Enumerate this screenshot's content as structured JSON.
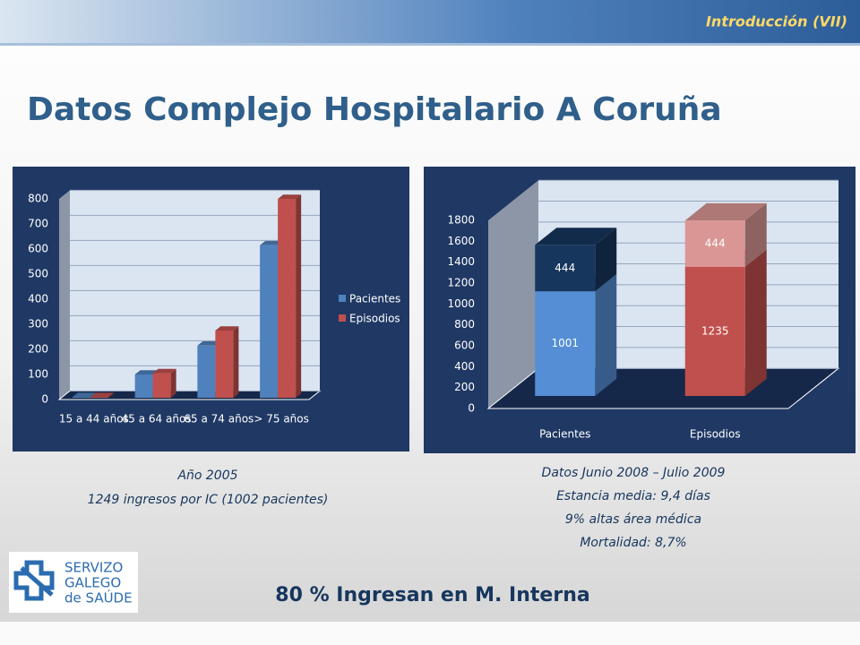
{
  "header": "Introducción (VII)",
  "title": "Datos Complejo Hospitalario A Coruña",
  "chart_data": [
    {
      "type": "bar",
      "categories": [
        "15 a 44 años",
        "45 a 64 años",
        "65 a 74 años",
        "> 75 años"
      ],
      "series": [
        {
          "name": "Pacientes",
          "color": "#4f81bd",
          "values": [
            10,
            100,
            215,
            615
          ]
        },
        {
          "name": "Episodios",
          "color": "#c0504d",
          "values": [
            10,
            105,
            275,
            800
          ]
        }
      ],
      "ylim": [
        0,
        800
      ],
      "yticks": [
        0,
        100,
        200,
        300,
        400,
        500,
        600,
        700,
        800
      ],
      "grid": true,
      "legend": "right"
    },
    {
      "type": "stacked_bar",
      "categories": [
        "Pacientes",
        "Episodios"
      ],
      "series": [
        {
          "colors": [
            "#558ed5",
            "#c0504d"
          ],
          "values": [
            1001,
            1235
          ]
        },
        {
          "colors": [
            "#17365d",
            "#d99694"
          ],
          "values": [
            444,
            444
          ]
        }
      ],
      "ylim": [
        0,
        1800
      ],
      "yticks": [
        0,
        200,
        400,
        600,
        800,
        1000,
        1200,
        1400,
        1600,
        1800
      ],
      "grid": true
    }
  ],
  "caption_left": [
    "Año 2005",
    "1249 ingresos por IC (1002 pacientes)"
  ],
  "caption_right": [
    "Datos Junio 2008 – Julio 2009",
    "Estancia media: 9,4 días",
    "9% altas área médica",
    "Mortalidad: 8,7%"
  ],
  "footer": "80 % Ingresan en M. Interna",
  "logo": [
    "SERVIZO",
    "GALEGO",
    "de SAÚDE"
  ]
}
